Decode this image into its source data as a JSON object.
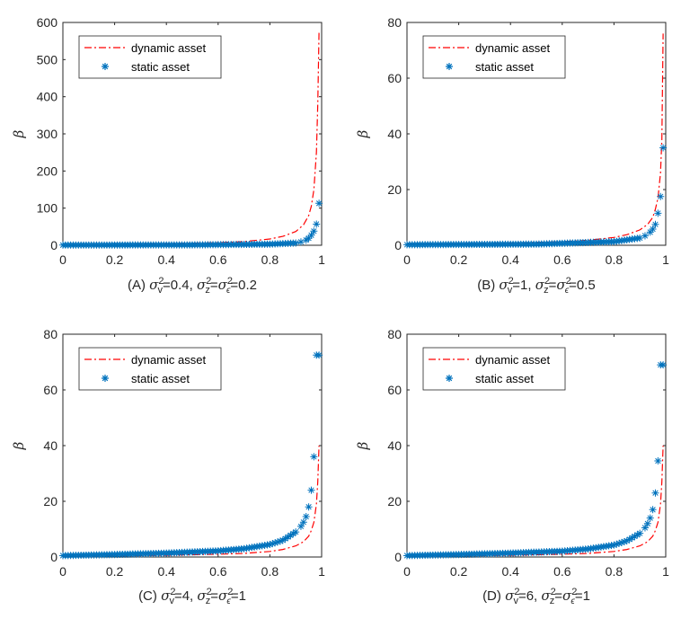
{
  "figure": {
    "colors": {
      "dynamic": "#ff0000",
      "static": "#0072bd",
      "axis": "#262626"
    }
  },
  "chart_data": [
    {
      "type": "line",
      "caption_parts": {
        "a": "(A) ",
        "b": "=0.4, ",
        "c": "=",
        "d": "=0.2"
      },
      "ylabel": "β",
      "xlim": [
        0,
        1
      ],
      "ylim": [
        0,
        600
      ],
      "xticks": [
        "0",
        "0.2",
        "0.4",
        "0.6",
        "0.8",
        "1"
      ],
      "yticks": [
        "0",
        "100",
        "200",
        "300",
        "400",
        "500",
        "600"
      ],
      "legend": [
        "dynamic asset",
        "static asset"
      ],
      "legend_position": "top-left",
      "series": [
        {
          "name": "dynamic asset",
          "style": "dash-dot",
          "x": [
            0,
            0.2,
            0.4,
            0.6,
            0.7,
            0.8,
            0.85,
            0.9,
            0.93,
            0.95,
            0.96,
            0.97,
            0.98,
            0.985,
            0.99
          ],
          "y": [
            1.5,
            2,
            4,
            7,
            10,
            17,
            24,
            37,
            55,
            80,
            105,
            150,
            250,
            380,
            575
          ]
        },
        {
          "name": "static asset",
          "style": "asterisk",
          "x": [
            0,
            0.5,
            0.8,
            0.9,
            0.92,
            0.94,
            0.95,
            0.96,
            0.97,
            0.98,
            0.99
          ],
          "y": [
            0.5,
            1,
            3,
            6,
            9,
            14,
            19,
            27,
            38,
            57,
            113
          ]
        }
      ]
    },
    {
      "type": "line",
      "caption_parts": {
        "a": "(B) ",
        "b": "=1, ",
        "c": "=",
        "d": "=0.5"
      },
      "ylabel": "β",
      "xlim": [
        0,
        1
      ],
      "ylim": [
        0,
        80
      ],
      "xticks": [
        "0",
        "0.2",
        "0.4",
        "0.6",
        "0.8",
        "1"
      ],
      "yticks": [
        "0",
        "20",
        "40",
        "60",
        "80"
      ],
      "legend": [
        "dynamic asset",
        "static asset"
      ],
      "legend_position": "top-left",
      "series": [
        {
          "name": "dynamic asset",
          "style": "dash-dot",
          "x": [
            0,
            0.2,
            0.4,
            0.6,
            0.7,
            0.8,
            0.85,
            0.9,
            0.93,
            0.95,
            0.96,
            0.97,
            0.98,
            0.985,
            0.99
          ],
          "y": [
            0.3,
            0.5,
            0.8,
            1.3,
            1.8,
            2.8,
            3.8,
            5.5,
            7.5,
            10,
            13,
            17,
            26,
            38,
            76
          ]
        },
        {
          "name": "static asset",
          "style": "asterisk",
          "x": [
            0,
            0.5,
            0.8,
            0.9,
            0.92,
            0.94,
            0.95,
            0.96,
            0.97,
            0.98,
            0.99
          ],
          "y": [
            0.2,
            0.4,
            1.3,
            2.6,
            3.4,
            4.7,
            5.8,
            7.5,
            11.5,
            17.5,
            35
          ]
        }
      ]
    },
    {
      "type": "line",
      "caption_parts": {
        "a": "(C) ",
        "b": "=4, ",
        "c": "=",
        "d": "=1"
      },
      "ylabel": "β",
      "xlim": [
        0,
        1
      ],
      "ylim": [
        0,
        80
      ],
      "xticks": [
        "0",
        "0.2",
        "0.4",
        "0.6",
        "0.8",
        "1"
      ],
      "yticks": [
        "0",
        "20",
        "40",
        "60",
        "80"
      ],
      "legend": [
        "dynamic asset",
        "static asset"
      ],
      "legend_position": "top-left",
      "series": [
        {
          "name": "dynamic asset",
          "style": "dash-dot",
          "x": [
            0,
            0.2,
            0.4,
            0.6,
            0.7,
            0.8,
            0.85,
            0.9,
            0.93,
            0.95,
            0.96,
            0.97,
            0.98,
            0.985,
            0.99
          ],
          "y": [
            0.2,
            0.4,
            0.6,
            1,
            1.3,
            2,
            2.7,
            4,
            5.5,
            7.5,
            9.5,
            12.5,
            19,
            27,
            40
          ]
        },
        {
          "name": "static asset",
          "style": "asterisk",
          "x": [
            0,
            0.2,
            0.4,
            0.6,
            0.7,
            0.8,
            0.85,
            0.9,
            0.92,
            0.93,
            0.94,
            0.95,
            0.96,
            0.97,
            0.98,
            0.99
          ],
          "y": [
            0.5,
            0.9,
            1.4,
            2.2,
            3,
            4.5,
            6,
            9,
            11,
            12.5,
            14.5,
            18,
            24,
            36,
            72.5,
            72.5
          ]
        }
      ]
    },
    {
      "type": "line",
      "caption_parts": {
        "a": "(D) ",
        "b": "=6, ",
        "c": "=",
        "d": "=1"
      },
      "ylabel": "β",
      "xlim": [
        0,
        1
      ],
      "ylim": [
        0,
        80
      ],
      "xticks": [
        "0",
        "0.2",
        "0.4",
        "0.6",
        "0.8",
        "1"
      ],
      "yticks": [
        "0",
        "20",
        "40",
        "60",
        "80"
      ],
      "legend": [
        "dynamic asset",
        "static asset"
      ],
      "legend_position": "top-left",
      "series": [
        {
          "name": "dynamic asset",
          "style": "dash-dot",
          "x": [
            0,
            0.2,
            0.4,
            0.6,
            0.7,
            0.8,
            0.85,
            0.9,
            0.93,
            0.95,
            0.96,
            0.97,
            0.98,
            0.985,
            0.99
          ],
          "y": [
            0.2,
            0.4,
            0.6,
            1,
            1.3,
            2,
            2.7,
            4,
            5.5,
            7.5,
            9.5,
            12.5,
            19,
            27,
            40
          ]
        },
        {
          "name": "static asset",
          "style": "asterisk",
          "x": [
            0,
            0.2,
            0.4,
            0.6,
            0.7,
            0.8,
            0.85,
            0.9,
            0.92,
            0.93,
            0.94,
            0.95,
            0.96,
            0.97,
            0.98,
            0.99
          ],
          "y": [
            0.5,
            0.9,
            1.4,
            2.1,
            2.9,
            4.3,
            5.8,
            8.5,
            10.5,
            12,
            14,
            17,
            23,
            34.5,
            69,
            69
          ]
        }
      ]
    }
  ]
}
